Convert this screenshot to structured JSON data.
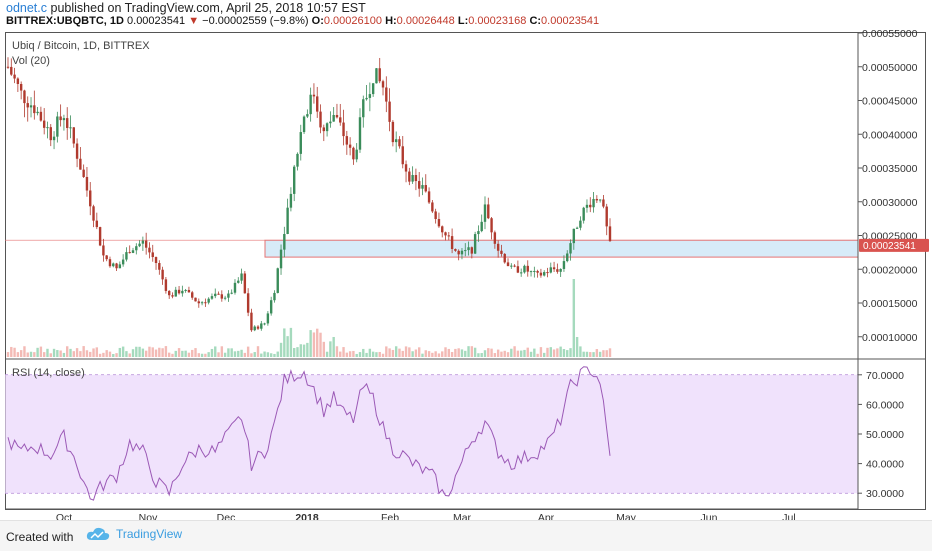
{
  "header": {
    "author": "odnet.c",
    "published": "published on TradingView.com, April 25, 2018 10:57 EST",
    "symbol": "BITTREX:UBQBTC, 1D",
    "price": "0.00023541",
    "change": "−0.00002559 (−9.8%)",
    "o_label": "O:",
    "o_value": "0.00026100",
    "h_label": "H:",
    "h_value": "0.00026448",
    "l_label": "L:",
    "l_value": "0.00023168",
    "c_label": "C:",
    "c_value": "0.00023541"
  },
  "legend": {
    "title": "Ubiq / Bitcoin, 1D, BITTREX",
    "volume": "Vol (20)",
    "rsi": "RSI (14, close)"
  },
  "footer": {
    "created": "Created with",
    "brand": "TradingView"
  },
  "colors": {
    "up": "#3a8c5a",
    "down": "#b03a2e",
    "rsi": "#9b59b6",
    "rsi_band": "#ead6fb",
    "zone": "#d7ebf8",
    "zone_border": "#e57373",
    "price_tag": "#d9534f"
  },
  "chart_data": {
    "type": "candlestick",
    "price_axis": {
      "ticks": [
        "0.00010000",
        "0.00015000",
        "0.00020000",
        "0.00025000",
        "0.00030000",
        "0.00035000",
        "0.00040000",
        "0.00045000",
        "0.00050000",
        "0.00055000"
      ],
      "min": 7e-05,
      "max": 0.00055
    },
    "last_price_label": "0.00023541",
    "rsi_axis": {
      "ticks": [
        "30.0000",
        "40.0000",
        "50.0000",
        "60.0000",
        "70.0000"
      ],
      "min": 25,
      "max": 75
    },
    "x_ticks": [
      "Oct",
      "Nov",
      "Dec",
      "2018",
      "Feb",
      "Mar",
      "Apr",
      "May",
      "Jun",
      "Jul"
    ],
    "support_zone": [
      0.000218,
      0.000243
    ],
    "price_path": [
      [
        0,
        0.0005
      ],
      [
        4,
        0.00046
      ],
      [
        8,
        0.00044
      ],
      [
        13,
        0.0004
      ],
      [
        17,
        0.00043
      ],
      [
        21,
        0.00037
      ],
      [
        25,
        0.0003
      ],
      [
        29,
        0.00022
      ],
      [
        33,
        0.0002
      ],
      [
        37,
        0.00023
      ],
      [
        41,
        0.00024
      ],
      [
        45,
        0.00021
      ],
      [
        49,
        0.00016
      ],
      [
        53,
        0.00017
      ],
      [
        58,
        0.00015
      ],
      [
        63,
        0.00016
      ],
      [
        67,
        0.00016
      ],
      [
        71,
        0.00019
      ],
      [
        74,
        0.00011
      ],
      [
        78,
        0.00012
      ],
      [
        81,
        0.00017
      ],
      [
        84,
        0.00026
      ],
      [
        87,
        0.00035
      ],
      [
        90,
        0.00043
      ],
      [
        93,
        0.00046
      ],
      [
        96,
        0.0004
      ],
      [
        99,
        0.00043
      ],
      [
        102,
        0.0004
      ],
      [
        105,
        0.00036
      ],
      [
        108,
        0.00044
      ],
      [
        111,
        0.00049
      ],
      [
        114,
        0.00047
      ],
      [
        117,
        0.0004
      ],
      [
        120,
        0.00036
      ],
      [
        123,
        0.00033
      ],
      [
        126,
        0.00032
      ],
      [
        129,
        0.00029
      ],
      [
        133,
        0.00025
      ],
      [
        137,
        0.00022
      ],
      [
        141,
        0.00023
      ],
      [
        145,
        0.00029
      ],
      [
        149,
        0.00023
      ],
      [
        153,
        0.0002
      ],
      [
        157,
        0.0002
      ],
      [
        161,
        0.00019
      ],
      [
        165,
        0.0002
      ],
      [
        168,
        0.0002
      ],
      [
        171,
        0.00024
      ],
      [
        174,
        0.00028
      ],
      [
        177,
        0.0003
      ],
      [
        180,
        0.00031
      ],
      [
        183,
        0.000235
      ]
    ],
    "rsi_path": [
      [
        0,
        48
      ],
      [
        4,
        44
      ],
      [
        8,
        46
      ],
      [
        13,
        43
      ],
      [
        17,
        49
      ],
      [
        21,
        40
      ],
      [
        25,
        28
      ],
      [
        29,
        33
      ],
      [
        33,
        36
      ],
      [
        37,
        47
      ],
      [
        41,
        44
      ],
      [
        45,
        34
      ],
      [
        49,
        30
      ],
      [
        53,
        40
      ],
      [
        58,
        45
      ],
      [
        63,
        44
      ],
      [
        67,
        50
      ],
      [
        71,
        56
      ],
      [
        74,
        40
      ],
      [
        78,
        44
      ],
      [
        81,
        53
      ],
      [
        84,
        68
      ],
      [
        87,
        70
      ],
      [
        90,
        71
      ],
      [
        93,
        65
      ],
      [
        96,
        58
      ],
      [
        99,
        62
      ],
      [
        102,
        57
      ],
      [
        105,
        55
      ],
      [
        108,
        66
      ],
      [
        111,
        62
      ],
      [
        114,
        52
      ],
      [
        117,
        45
      ],
      [
        120,
        43
      ],
      [
        123,
        40
      ],
      [
        126,
        38
      ],
      [
        129,
        36
      ],
      [
        133,
        28
      ],
      [
        137,
        38
      ],
      [
        141,
        48
      ],
      [
        145,
        54
      ],
      [
        149,
        44
      ],
      [
        153,
        40
      ],
      [
        157,
        42
      ],
      [
        161,
        44
      ],
      [
        165,
        48
      ],
      [
        168,
        55
      ],
      [
        171,
        66
      ],
      [
        174,
        70
      ],
      [
        177,
        72
      ],
      [
        180,
        68
      ],
      [
        183,
        42
      ]
    ]
  }
}
